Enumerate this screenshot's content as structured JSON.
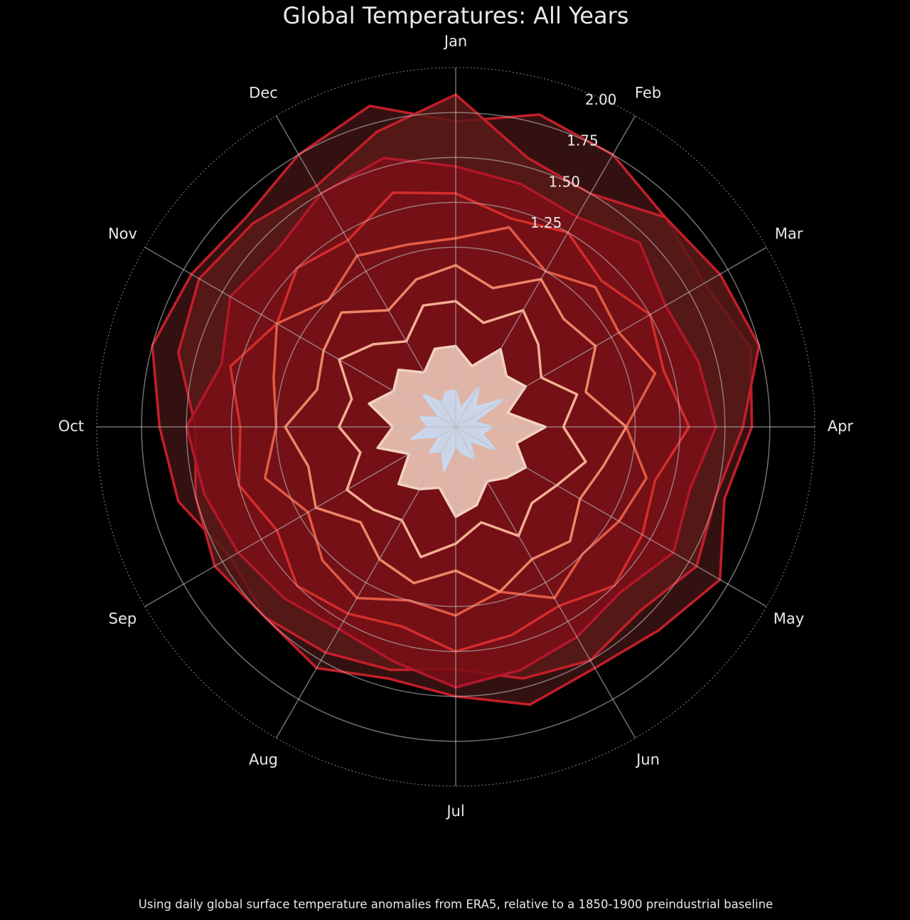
{
  "chart_data": {
    "type": "polar-line",
    "title": "Global Temperatures: All Years",
    "caption": "Using daily global surface temperature anomalies from ERA5, relative to a 1850-1900 preindustrial baseline",
    "categories": [
      "Jan",
      null,
      "Feb",
      null,
      "Mar",
      null,
      "Apr",
      null,
      "May",
      null,
      "Jun",
      null,
      "Jul",
      null,
      "Aug",
      null,
      "Sep",
      null,
      "Oct",
      null,
      "Nov",
      null,
      "Dec",
      null
    ],
    "ylim": [
      0.25,
      2.25
    ],
    "yticks": [
      {
        "value": 1.25,
        "label": "1.25"
      },
      {
        "value": 1.5,
        "label": "1.50"
      },
      {
        "value": 1.75,
        "label": "1.75"
      },
      {
        "value": 2.0,
        "label": "2.00"
      }
    ],
    "grid": true,
    "series": [
      {
        "color": "#c41e2a",
        "fill": "#3d1414",
        "values": [
          1.95,
          2.05,
          2.0,
          1.9,
          1.85,
          1.95,
          1.9,
          1.8,
          1.95,
          1.85,
          1.8,
          1.85,
          1.75,
          1.7,
          1.8,
          1.75,
          1.7,
          1.85,
          1.9,
          2.0,
          1.95,
          1.9,
          2.0,
          2.1
        ]
      },
      {
        "color": "#c41e2a",
        "fill": "#5a1a18",
        "values": [
          2.1,
          1.8,
          1.75,
          1.9,
          1.95,
          2.0,
          1.85,
          1.75,
          1.8,
          1.7,
          1.75,
          1.7,
          1.6,
          1.65,
          1.7,
          1.75,
          1.8,
          1.75,
          1.7,
          1.85,
          1.9,
          1.85,
          1.8,
          1.95
        ]
      },
      {
        "color": "#b3172a",
        "fill": "#7a0f16",
        "values": [
          1.7,
          1.65,
          1.6,
          1.7,
          1.6,
          1.65,
          1.7,
          1.6,
          1.65,
          1.55,
          1.6,
          1.65,
          1.7,
          1.6,
          1.55,
          1.6,
          1.65,
          1.7,
          1.75,
          1.6,
          1.7,
          1.65,
          1.75,
          1.8
        ]
      },
      {
        "color": "#d42d2c",
        "values": [
          1.55,
          1.45,
          1.5,
          1.4,
          1.5,
          1.45,
          1.55,
          1.4,
          1.45,
          1.5,
          1.4,
          1.45,
          1.5,
          1.4,
          1.45,
          1.5,
          1.4,
          1.5,
          1.45,
          1.55,
          1.4,
          1.5,
          1.45,
          1.6
        ]
      },
      {
        "color": "#e25a44",
        "values": [
          1.3,
          1.4,
          1.25,
          1.35,
          1.3,
          1.4,
          1.2,
          1.35,
          1.3,
          1.25,
          1.35,
          1.2,
          1.3,
          1.25,
          1.35,
          1.3,
          1.2,
          1.35,
          1.25,
          1.3,
          1.4,
          1.25,
          1.35,
          1.3
        ]
      },
      {
        "color": "#ef8466",
        "values": [
          1.15,
          1.05,
          1.2,
          1.1,
          1.15,
          1.0,
          1.2,
          1.1,
          1.05,
          1.15,
          1.1,
          1.2,
          1.05,
          1.15,
          1.1,
          1.0,
          1.15,
          1.1,
          1.2,
          1.05,
          1.1,
          1.15,
          1.0,
          1.1
        ]
      },
      {
        "color": "#f5ae92",
        "values": [
          0.95,
          0.85,
          1.0,
          0.9,
          0.8,
          0.95,
          0.85,
          1.0,
          0.9,
          0.85,
          0.95,
          0.8,
          0.9,
          1.0,
          0.85,
          0.9,
          0.95,
          0.8,
          0.9,
          0.85,
          1.0,
          0.9,
          0.8,
          0.95
        ]
      },
      {
        "color": "#f3d2c2",
        "fill": "#f3d2c2",
        "values": [
          0.7,
          0.6,
          0.75,
          0.65,
          0.7,
          0.55,
          0.75,
          0.6,
          0.7,
          0.65,
          0.6,
          0.7,
          0.75,
          0.6,
          0.65,
          0.7,
          0.55,
          0.7,
          0.6,
          0.75,
          0.65,
          0.7,
          0.6,
          0.7
        ]
      },
      {
        "color": "#c7d9f2",
        "fill": "#c7d9f2",
        "values": [
          0.45,
          0.35,
          0.5,
          0.4,
          0.55,
          0.35,
          0.45,
          0.4,
          0.5,
          0.35,
          0.45,
          0.4,
          0.35,
          0.5,
          0.4,
          0.45,
          0.35,
          0.5,
          0.4,
          0.45,
          0.35,
          0.5,
          0.4,
          0.45
        ]
      }
    ]
  }
}
